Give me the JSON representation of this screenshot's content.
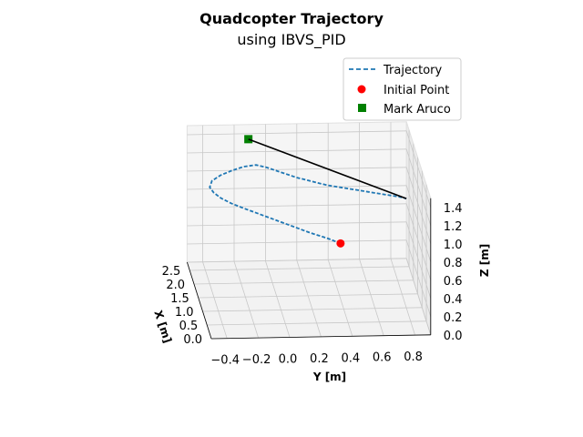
{
  "chart_data": {
    "type": "line3d",
    "title": "Quadcopter Trajectory",
    "subtitle": "using IBVS_PID",
    "xlabel": "X [m]",
    "ylabel": "Y [m]",
    "zlabel": "Z [m]",
    "x_ticks": [
      "0.0",
      "0.5",
      "1.0",
      "1.5",
      "2.0",
      "2.5"
    ],
    "y_ticks": [
      "−0.4",
      "−0.2",
      "0.0",
      "0.2",
      "0.4",
      "0.6",
      "0.8"
    ],
    "z_ticks": [
      "0.0",
      "0.2",
      "0.4",
      "0.6",
      "0.8",
      "1.0",
      "1.2",
      "1.4"
    ],
    "xlim": [
      0,
      2.8
    ],
    "ylim": [
      -0.5,
      0.9
    ],
    "zlim": [
      0,
      1.5
    ],
    "legend": {
      "position": "top-right",
      "entries": [
        "Trajectory",
        "Initial Point",
        "Mark Aruco"
      ]
    },
    "colors": {
      "trajectory": "#1f77b4",
      "initial_point": "#ff0000",
      "mark_aruco": "#008000",
      "connector": "#000000"
    },
    "series": [
      {
        "name": "Trajectory",
        "style": "dashed",
        "points": [
          [
            1.0,
            0.38,
            0.72
          ],
          [
            1.1,
            0.3,
            0.75
          ],
          [
            1.2,
            0.2,
            0.78
          ],
          [
            1.3,
            0.1,
            0.82
          ],
          [
            1.4,
            0.0,
            0.86
          ],
          [
            1.5,
            -0.1,
            0.9
          ],
          [
            1.6,
            -0.2,
            0.94
          ],
          [
            1.7,
            -0.28,
            0.97
          ],
          [
            1.8,
            -0.34,
            1.0
          ],
          [
            1.9,
            -0.38,
            1.03
          ],
          [
            2.0,
            -0.4,
            1.06
          ],
          [
            2.1,
            -0.38,
            1.1
          ],
          [
            2.2,
            -0.32,
            1.13
          ],
          [
            2.3,
            -0.24,
            1.15
          ],
          [
            2.4,
            -0.16,
            1.16
          ],
          [
            2.45,
            -0.08,
            1.16
          ],
          [
            2.4,
            -0.02,
            1.15
          ],
          [
            2.3,
            0.04,
            1.14
          ],
          [
            2.2,
            0.1,
            1.13
          ],
          [
            2.1,
            0.16,
            1.12
          ],
          [
            2.0,
            0.22,
            1.12
          ],
          [
            1.9,
            0.28,
            1.12
          ],
          [
            1.8,
            0.34,
            1.12
          ],
          [
            1.7,
            0.4,
            1.13
          ],
          [
            1.6,
            0.46,
            1.14
          ],
          [
            1.5,
            0.52,
            1.15
          ],
          [
            1.4,
            0.58,
            1.16
          ],
          [
            1.3,
            0.64,
            1.17
          ],
          [
            1.2,
            0.7,
            1.18
          ],
          [
            1.1,
            0.76,
            1.19
          ],
          [
            1.0,
            0.8,
            1.2
          ]
        ]
      },
      {
        "name": "Initial Point",
        "style": "marker-circle",
        "points": [
          [
            1.0,
            0.38,
            0.72
          ]
        ]
      },
      {
        "name": "Mark Aruco",
        "style": "marker-square",
        "points": [
          [
            2.6,
            -0.12,
            1.4
          ]
        ]
      },
      {
        "name": "",
        "style": "solid-connector",
        "points": [
          [
            2.6,
            -0.12,
            1.4
          ],
          [
            1.0,
            0.8,
            1.2
          ]
        ]
      }
    ]
  }
}
